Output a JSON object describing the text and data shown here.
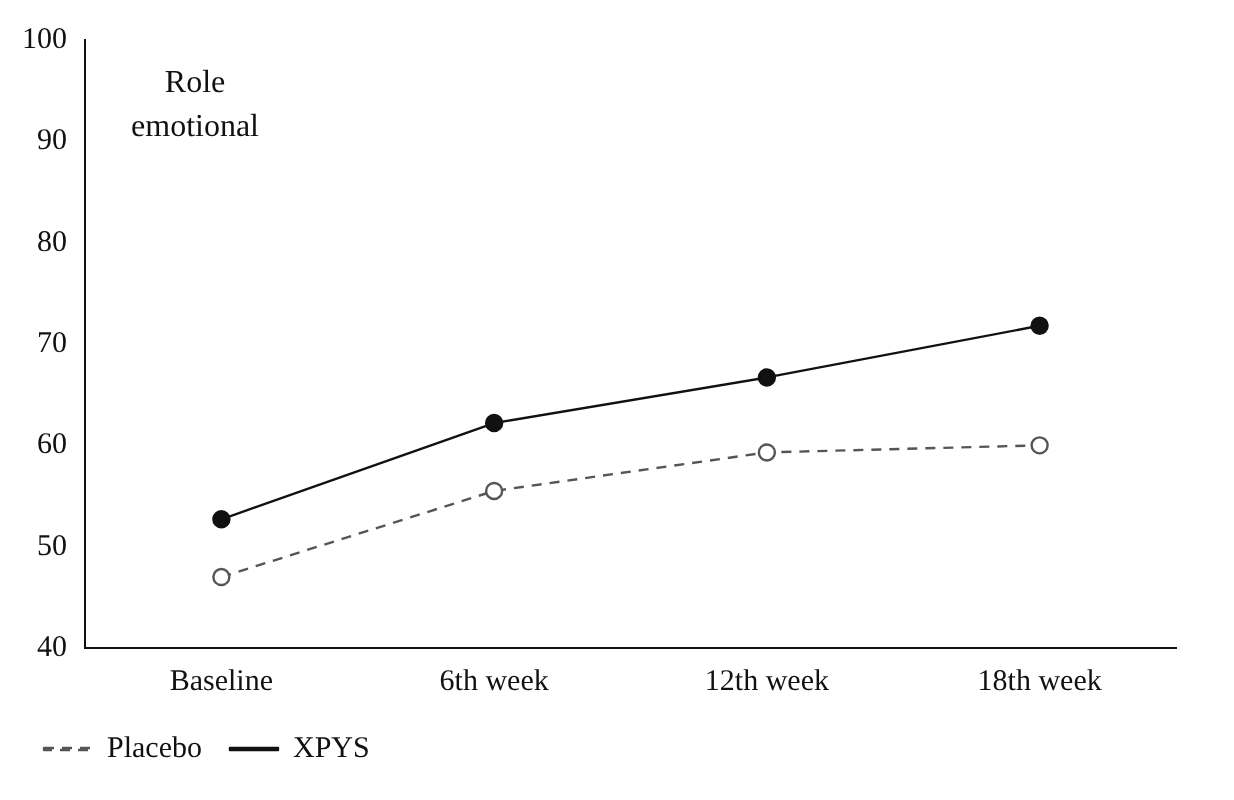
{
  "chart_data": {
    "type": "line",
    "categories": [
      "Baseline",
      "6th week",
      "12th week",
      "18th week"
    ],
    "series": [
      {
        "name": "Placebo",
        "color": "#555555",
        "values": [
          47,
          55.5,
          59.3,
          60
        ],
        "line_style": "dashed",
        "marker": "circle"
      },
      {
        "name": "XPYS",
        "color": "#111111",
        "values": [
          52.7,
          62.2,
          66.7,
          71.8
        ],
        "line_style": "solid",
        "marker": "circle"
      }
    ],
    "ylim": [
      40,
      100
    ],
    "yticks": [
      40,
      50,
      60,
      70,
      80,
      90,
      100
    ],
    "grid": false,
    "legend": "bottom left",
    "annotations": [
      "Role emotional"
    ]
  }
}
